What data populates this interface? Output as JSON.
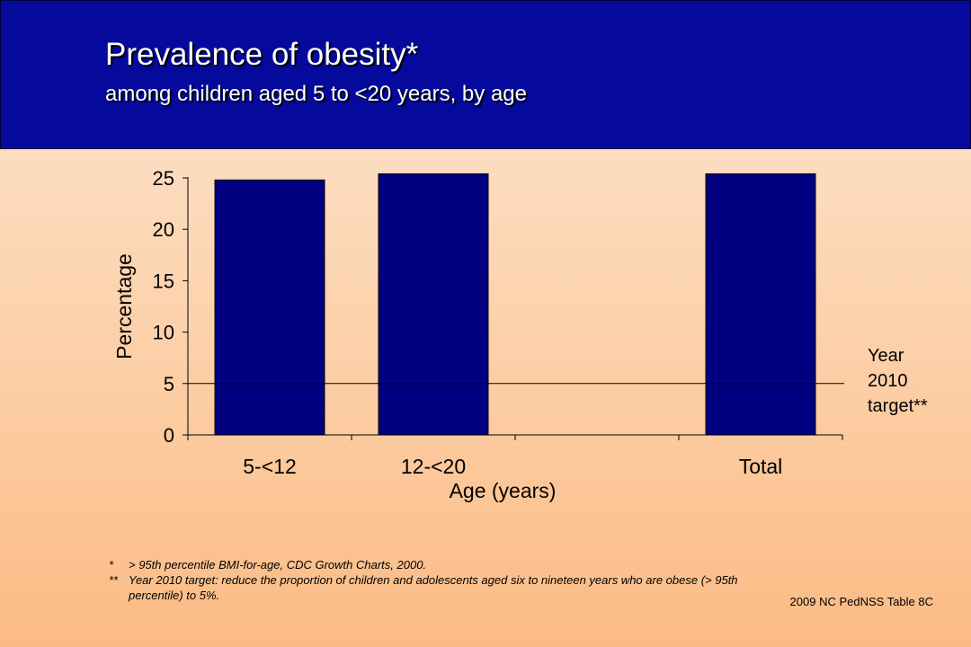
{
  "header": {
    "title": "Prevalence of obesity*",
    "subtitle": "among children aged 5 to <20 years, by age"
  },
  "chart_data": {
    "type": "bar",
    "categories": [
      "5-<12",
      "12-<20",
      "",
      "Total"
    ],
    "values": [
      24.8,
      25.4,
      null,
      25.4
    ],
    "xlabel": "Age (years)",
    "ylabel": "Percentage",
    "ylim": [
      0,
      25
    ],
    "yticks": [
      0,
      5,
      10,
      15,
      20,
      25
    ],
    "bar_color": "#000080",
    "reference_line": {
      "value": 5,
      "label": "Year 2010 target**"
    },
    "grid": false
  },
  "target_label": [
    "Year",
    "2010",
    "target**"
  ],
  "footnotes": [
    {
      "mark": "*",
      "text": "> 95th percentile BMI-for-age, CDC Growth Charts, 2000."
    },
    {
      "mark": "**",
      "text": "Year 2010 target: reduce the proportion of children and adolescents aged six to nineteen years who are obese (> 95th percentile) to 5%."
    }
  ],
  "source": "2009 NC PedNSS Table 8C"
}
